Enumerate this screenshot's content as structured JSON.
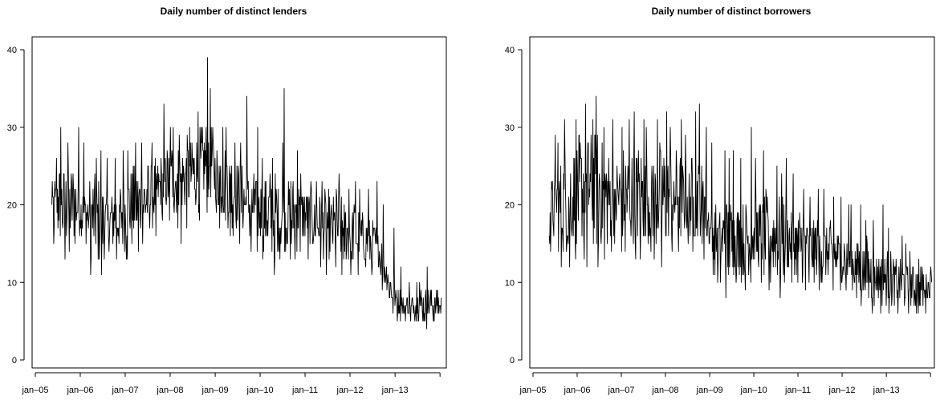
{
  "chart_data": [
    {
      "type": "line",
      "title": "Daily number of distinct lenders",
      "xlabel": "",
      "ylabel": "",
      "ylim": [
        0,
        40
      ],
      "yticks": [
        0,
        10,
        20,
        30,
        40
      ],
      "xlim": [
        "2005-01-01",
        "2013-12-31"
      ],
      "xtick_labels": [
        "jan–05",
        "jan–06",
        "jan–07",
        "jan–08",
        "jan–09",
        "jan–10",
        "jan–11",
        "jan–12",
        "jan–13"
      ],
      "grid": false,
      "series": [
        {
          "x": [
            "2005-05",
            "2005-07",
            "2005-09",
            "2005-11",
            "2006-01",
            "2006-03",
            "2006-05",
            "2006-07",
            "2006-09",
            "2006-11",
            "2007-01",
            "2007-03",
            "2007-05",
            "2007-07",
            "2007-09",
            "2007-11",
            "2008-01",
            "2008-03",
            "2008-05",
            "2008-07",
            "2008-09",
            "2008-11",
            "2009-01",
            "2009-03",
            "2009-05",
            "2009-07",
            "2009-09",
            "2009-11",
            "2010-01",
            "2010-03",
            "2010-05",
            "2010-07",
            "2010-09",
            "2010-11",
            "2011-01",
            "2011-03",
            "2011-05",
            "2011-07",
            "2011-09",
            "2011-11",
            "2012-01",
            "2012-03",
            "2012-05",
            "2012-07",
            "2012-09",
            "2012-11",
            "2013-01",
            "2013-03",
            "2013-05",
            "2013-07",
            "2013-09",
            "2013-11"
          ],
          "mean": [
            19.5,
            20,
            19.5,
            20.5,
            19,
            18.5,
            18,
            17.5,
            18,
            18.5,
            19.5,
            20,
            20.5,
            21,
            22,
            23,
            23.5,
            23,
            23.5,
            24,
            25,
            26,
            24,
            23,
            22,
            21,
            20,
            19.5,
            19,
            19,
            18.5,
            18.5,
            19,
            19,
            18.5,
            18,
            17.5,
            17,
            17,
            16.5,
            16.5,
            16,
            15.5,
            15,
            13,
            10,
            7.5,
            7,
            7,
            7,
            7,
            7
          ],
          "low": [
            15,
            13,
            14,
            15,
            14,
            11,
            11,
            13,
            13,
            13,
            13,
            14,
            15,
            16,
            18,
            18,
            17,
            15,
            17,
            18,
            19,
            19,
            17,
            16,
            16,
            15,
            14,
            14,
            13,
            11,
            13,
            13,
            13,
            14,
            13,
            12,
            11,
            12,
            11,
            11,
            11,
            12,
            11,
            11,
            9,
            6,
            5,
            5,
            5,
            4,
            4,
            5
          ],
          "high": [
            26,
            30,
            28,
            30,
            28,
            26,
            27,
            26,
            26,
            27,
            27,
            28,
            28,
            28,
            33,
            30,
            30,
            29,
            30,
            32,
            39,
            35,
            30,
            30,
            28,
            28,
            34,
            30,
            26,
            26,
            28,
            35,
            27,
            24,
            23,
            23,
            23,
            22,
            24,
            22,
            23,
            22,
            22,
            23,
            20,
            17,
            12,
            10,
            10,
            10,
            12,
            9
          ]
        }
      ]
    },
    {
      "type": "line",
      "title": "Daily number of distinct borrowers",
      "xlabel": "",
      "ylabel": "",
      "ylim": [
        0,
        40
      ],
      "yticks": [
        0,
        10,
        20,
        30,
        40
      ],
      "xlim": [
        "2005-01-01",
        "2013-12-31"
      ],
      "xtick_labels": [
        "jan–05",
        "jan–06",
        "jan–07",
        "jan–08",
        "jan–09",
        "jan–10",
        "jan–11",
        "jan–12",
        "jan–13"
      ],
      "grid": false,
      "series": [
        {
          "x": [
            "2005-05",
            "2005-07",
            "2005-09",
            "2005-11",
            "2006-01",
            "2006-03",
            "2006-05",
            "2006-07",
            "2006-09",
            "2006-11",
            "2007-01",
            "2007-03",
            "2007-05",
            "2007-07",
            "2007-09",
            "2007-11",
            "2008-01",
            "2008-03",
            "2008-05",
            "2008-07",
            "2008-09",
            "2008-11",
            "2009-01",
            "2009-03",
            "2009-05",
            "2009-07",
            "2009-09",
            "2009-11",
            "2010-01",
            "2010-03",
            "2010-05",
            "2010-07",
            "2010-09",
            "2010-11",
            "2011-01",
            "2011-03",
            "2011-05",
            "2011-07",
            "2011-09",
            "2011-11",
            "2012-01",
            "2012-03",
            "2012-05",
            "2012-07",
            "2012-09",
            "2012-11",
            "2013-01",
            "2013-03",
            "2013-05",
            "2013-07",
            "2013-09",
            "2013-11"
          ],
          "mean": [
            19,
            19.5,
            20,
            21,
            22,
            22.5,
            22,
            21.5,
            21,
            21,
            21.5,
            21,
            21.5,
            21,
            20.5,
            21,
            21,
            21.5,
            21,
            20.5,
            21,
            20.5,
            16,
            15.5,
            15.5,
            15,
            15.5,
            15.5,
            16,
            16,
            16,
            15.5,
            15.5,
            15,
            15,
            14.5,
            14.5,
            14,
            14,
            13.5,
            13,
            12.5,
            12,
            11.5,
            11,
            10.5,
            10.5,
            10,
            10,
            9.5,
            9.5,
            9.5
          ],
          "low": [
            14,
            12,
            12,
            13,
            13,
            12,
            12,
            13,
            14,
            14,
            14,
            13,
            13,
            14,
            13,
            12,
            14,
            14,
            15,
            14,
            15,
            13,
            10,
            10,
            8,
            9,
            9,
            10,
            10,
            9,
            10,
            8,
            10,
            10,
            9,
            10,
            9,
            10,
            9,
            9,
            9,
            8,
            7,
            6,
            7,
            6,
            6,
            6,
            6,
            6,
            6,
            6
          ],
          "high": [
            29,
            28,
            31,
            31,
            33,
            31,
            34,
            30,
            31,
            30,
            31,
            32,
            31,
            30,
            31,
            32,
            30,
            31,
            29,
            32,
            33,
            30,
            28,
            27,
            26,
            27,
            26,
            30,
            26,
            27,
            25,
            24,
            26,
            24,
            22,
            21,
            22,
            22,
            21,
            21,
            20,
            20,
            20,
            18,
            18,
            20,
            17,
            16,
            15,
            14,
            13,
            12
          ]
        }
      ]
    }
  ]
}
